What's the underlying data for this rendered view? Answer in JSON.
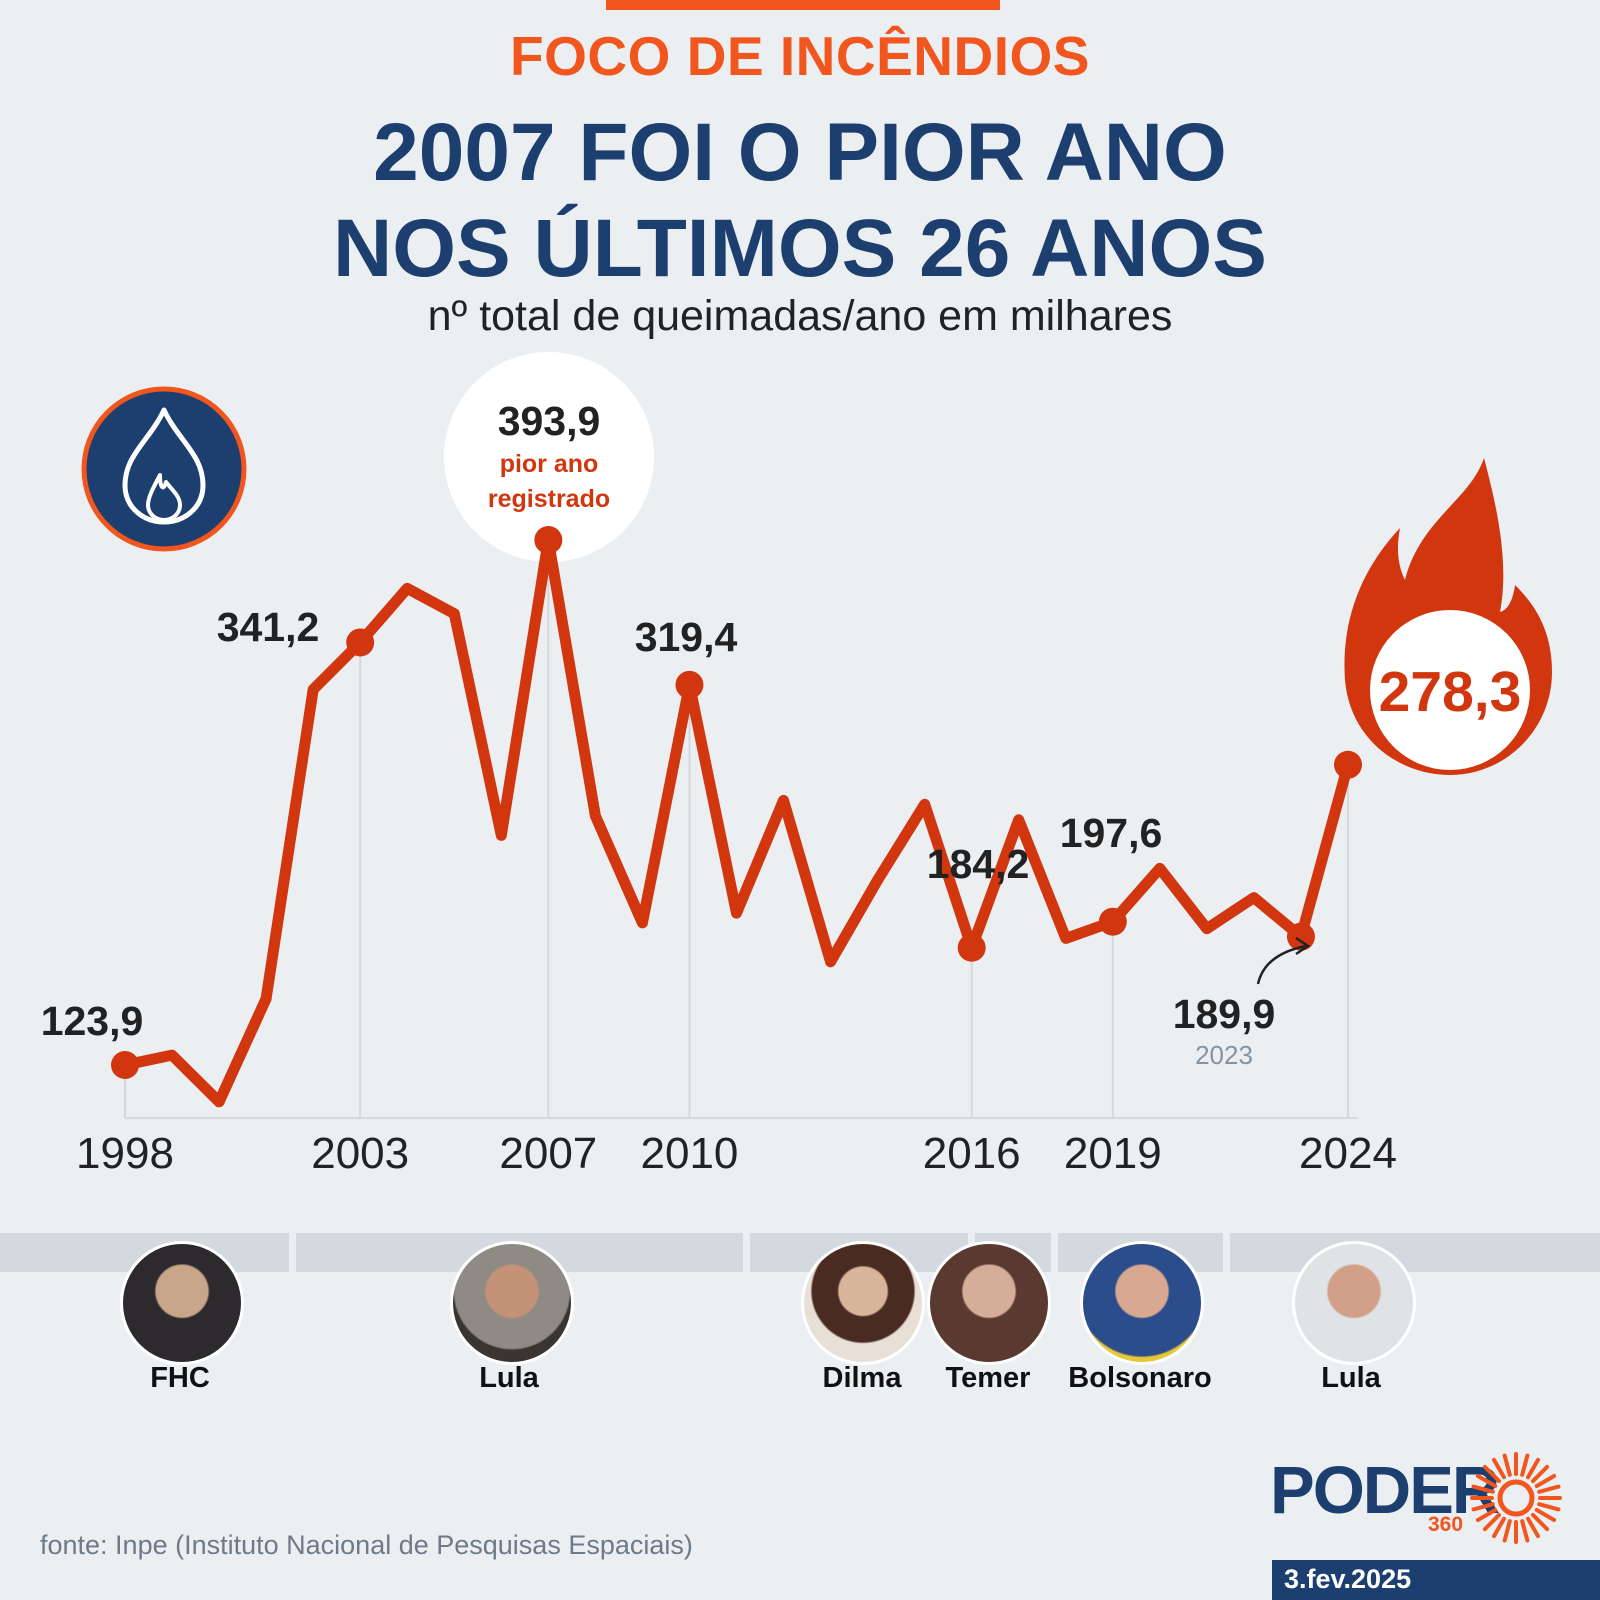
{
  "header": {
    "kicker": "FOCO DE INCÊNDIOS",
    "headline_line1": "2007 FOI O PIOR ANO",
    "headline_line2": "NOS ÚLTIMOS 26 ANOS",
    "subtitle": "nº total de queimadas/ano em milhares"
  },
  "colors": {
    "line": "#d1360f",
    "accent": "#f0561d",
    "navy": "#1c3f70"
  },
  "chart_data": {
    "type": "line",
    "title": "2007 FOI O PIOR ANO NOS ÚLTIMOS 26 ANOS",
    "subtitle": "nº total de queimadas/ano em milhares",
    "grid": "vertical lines at labeled years",
    "x": [
      1998,
      1999,
      2000,
      2001,
      2002,
      2003,
      2004,
      2005,
      2006,
      2007,
      2008,
      2009,
      2010,
      2011,
      2012,
      2013,
      2014,
      2015,
      2016,
      2017,
      2018,
      2019,
      2020,
      2021,
      2022,
      2023,
      2024
    ],
    "series": [
      {
        "values": [
          123.9,
          129,
          105,
          158,
          317,
          341.2,
          369,
          356,
          242,
          393.9,
          252,
          197,
          319.4,
          202,
          260,
          177,
          219,
          258,
          184.2,
          250,
          189,
          197.6,
          225,
          194,
          210,
          189.9,
          278.3
        ]
      }
    ],
    "x_ticks": [
      "1998",
      "2003",
      "2007",
      "2010",
      "2016",
      "2019",
      "2024"
    ],
    "point_labels": [
      {
        "year": 1998,
        "text": "123,9"
      },
      {
        "year": 2003,
        "text": "341,2"
      },
      {
        "year": 2007,
        "text": "393,9",
        "note_line1": "pior ano",
        "note_line2": "registrado"
      },
      {
        "year": 2010,
        "text": "319,4"
      },
      {
        "year": 2016,
        "text": "184,2"
      },
      {
        "year": 2019,
        "text": "197,6"
      },
      {
        "year": 2023,
        "text": "189,9",
        "sub": "2023"
      },
      {
        "year": 2024,
        "text": "278,3"
      }
    ]
  },
  "governments": [
    {
      "name": "FHC"
    },
    {
      "name": "Lula"
    },
    {
      "name": "Dilma"
    },
    {
      "name": "Temer"
    },
    {
      "name": "Bolsonaro"
    },
    {
      "name": "Lula"
    }
  ],
  "footer": {
    "source": "fonte: Inpe (Instituto Nacional de Pesquisas Espaciais)",
    "logo_text": "PODER",
    "logo_number": "360",
    "date": "3.fev.2025"
  }
}
